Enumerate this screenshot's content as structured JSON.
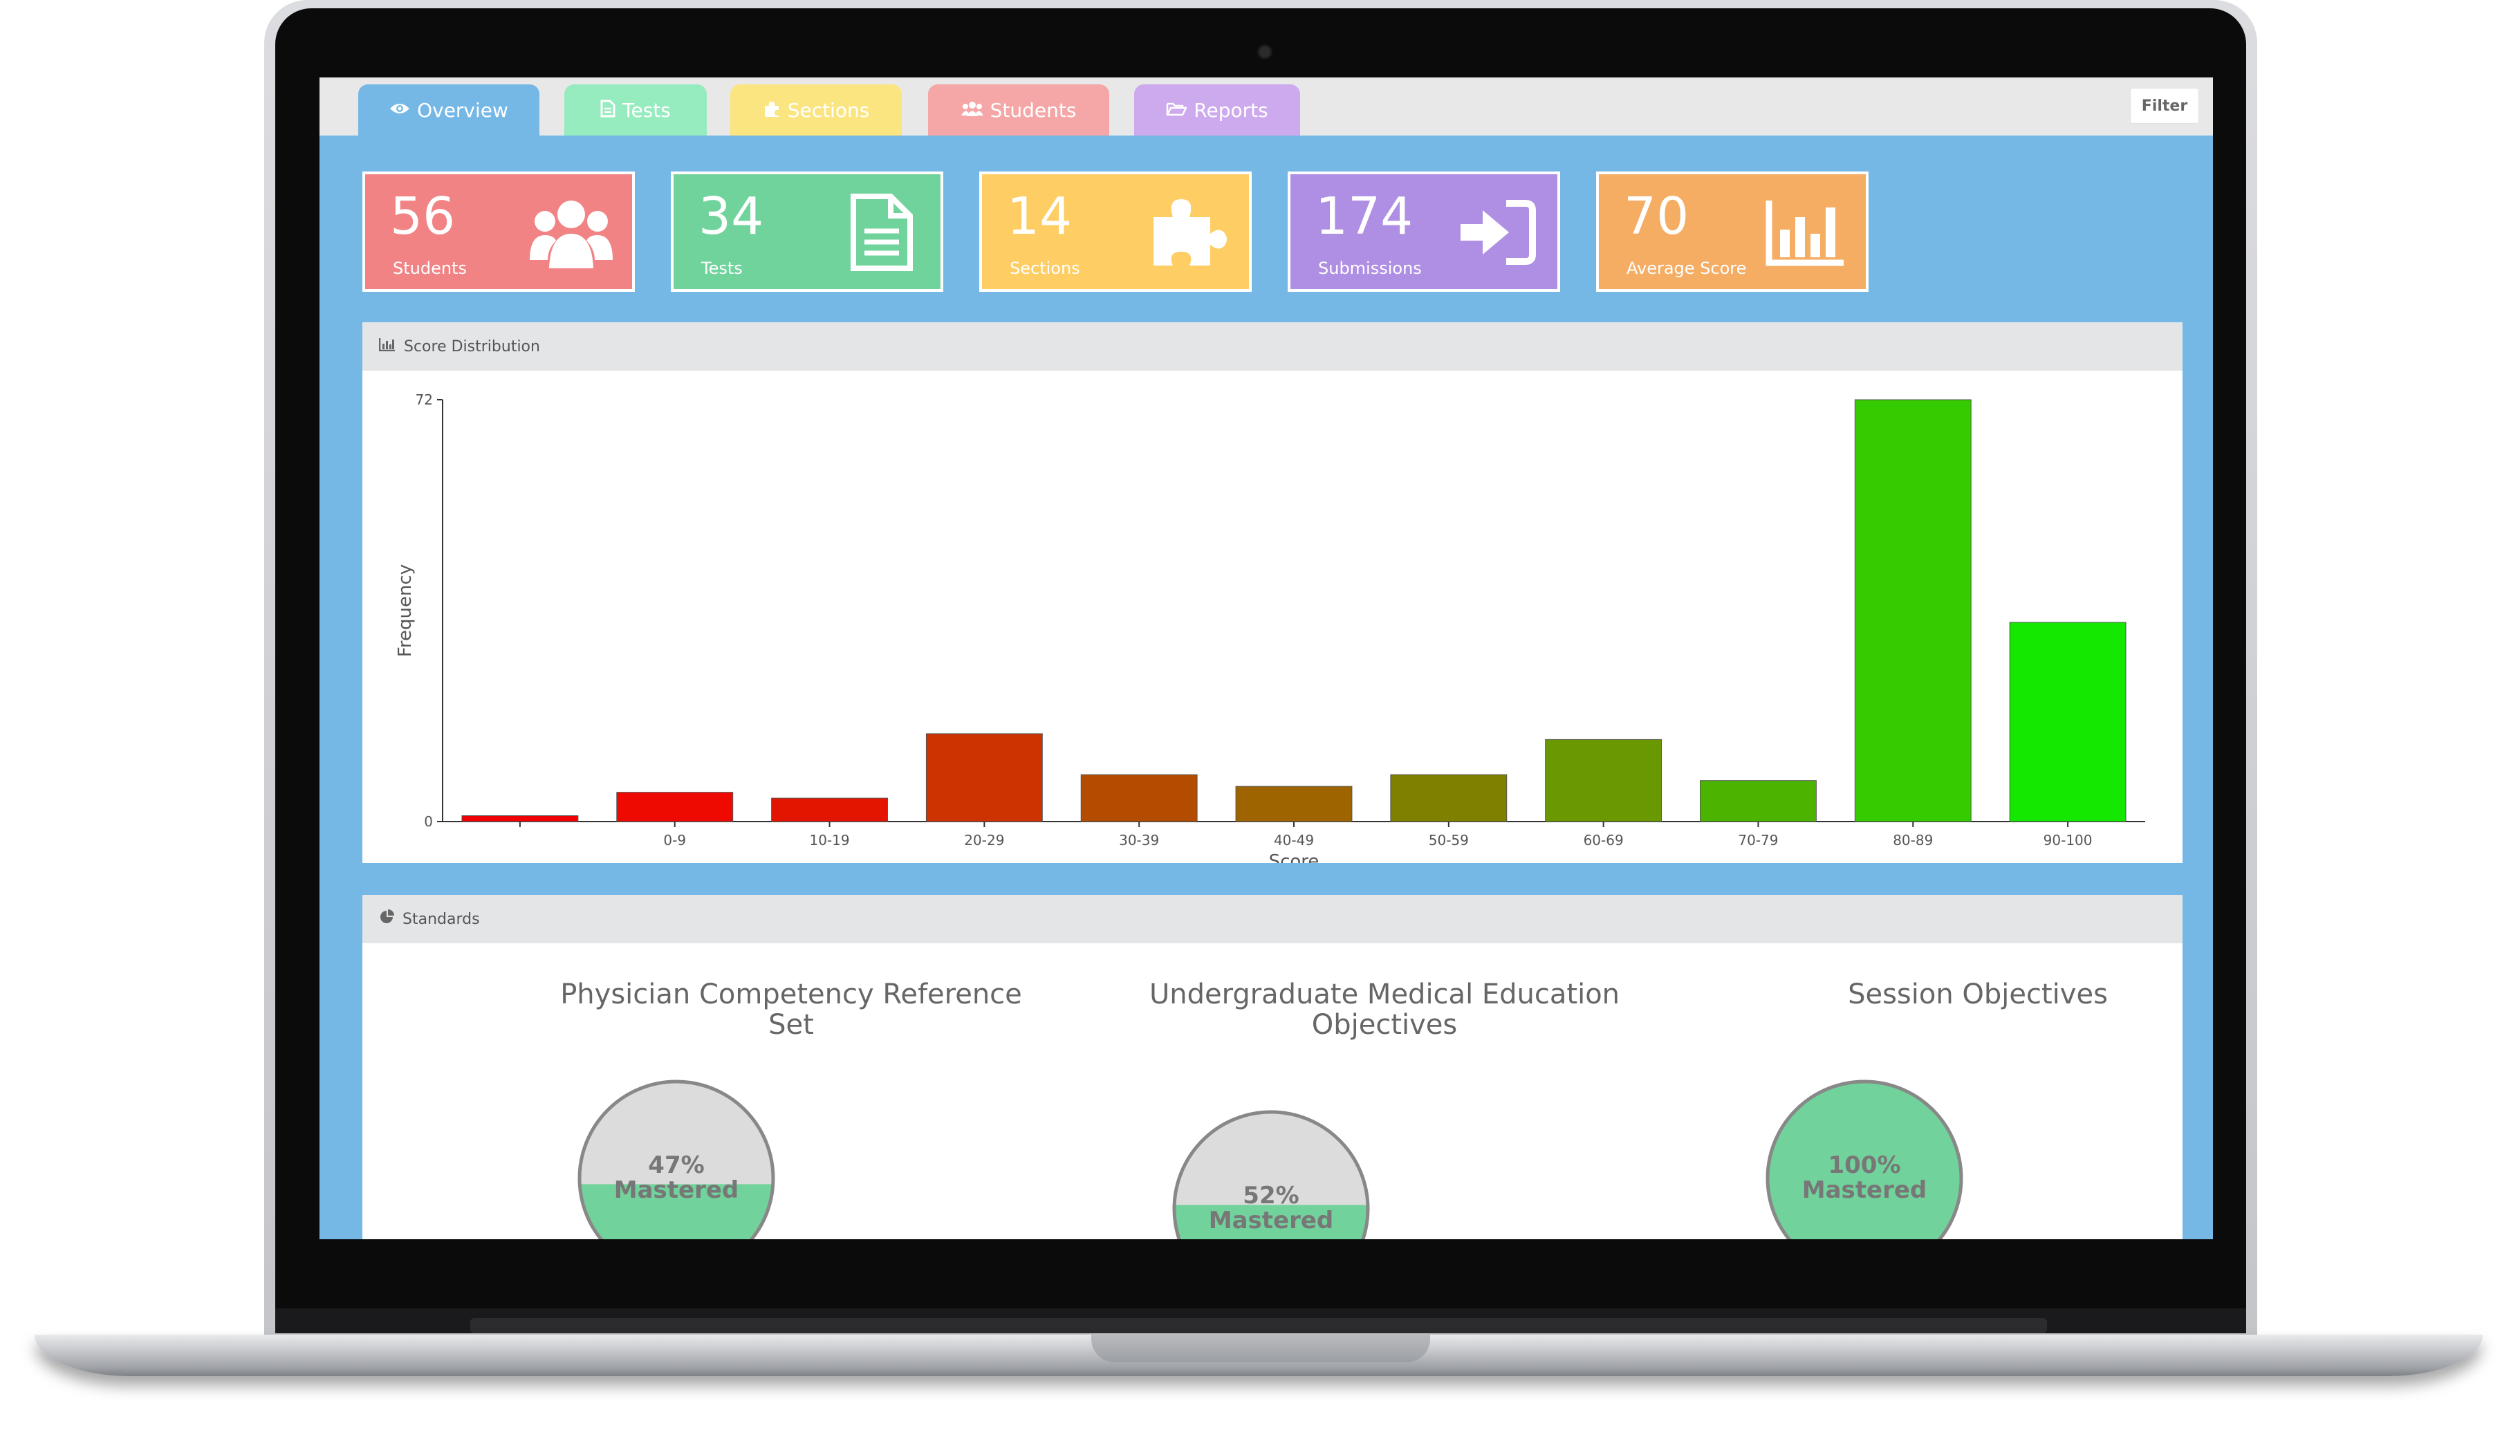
{
  "tabs": [
    {
      "label": "Overview",
      "icon": "eye-icon",
      "color": "#75b8e6",
      "active": true
    },
    {
      "label": "Tests",
      "icon": "document-icon",
      "color": "#96ecbf"
    },
    {
      "label": "Sections",
      "icon": "puzzle-icon",
      "color": "#fbe580"
    },
    {
      "label": "Students",
      "icon": "users-icon",
      "color": "#f5a6a6"
    },
    {
      "label": "Reports",
      "icon": "folder-open-icon",
      "color": "#cda9ee"
    }
  ],
  "filter_label": "Filter",
  "stats": [
    {
      "value": "56",
      "label": "Students",
      "icon": "users-icon",
      "color": "#f28385"
    },
    {
      "value": "34",
      "label": "Tests",
      "icon": "document-icon",
      "color": "#71d39c"
    },
    {
      "value": "14",
      "label": "Sections",
      "icon": "puzzle-icon",
      "color": "#fecd63"
    },
    {
      "value": "174",
      "label": "Submissions",
      "icon": "sign-in-icon",
      "color": "#af8fe3"
    },
    {
      "value": "70",
      "label": "Average Score",
      "icon": "bar-chart-icon",
      "color": "#f4ad63"
    }
  ],
  "score_panel": {
    "title": "Score Distribution",
    "icon": "bar-chart-icon"
  },
  "chart_data": {
    "type": "bar",
    "categories": [
      "",
      "0-9",
      "10-19",
      "20-29",
      "30-39",
      "40-49",
      "50-59",
      "60-69",
      "70-79",
      "80-89",
      "90-100"
    ],
    "values": [
      1,
      5,
      4,
      15,
      8,
      6,
      8,
      14,
      7,
      72,
      34
    ],
    "colors": [
      "#f00000",
      "#ee0a00",
      "#e31400",
      "#cc3300",
      "#b44c00",
      "#9e6400",
      "#7f7f00",
      "#6a9800",
      "#4cb400",
      "#34cc00",
      "#14e800"
    ],
    "xlabel": "Score",
    "ylabel": "Frequency",
    "yticks": [
      "0",
      "72"
    ],
    "ylim": [
      0,
      72
    ],
    "grid": false
  },
  "standards_panel": {
    "title": "Standards",
    "icon": "pie-chart-icon"
  },
  "standards": [
    {
      "title": "Physician Competency Reference Set",
      "percent": 47,
      "label": "47% Mastered",
      "pct_text": "47%",
      "mastered_text": "Mastered"
    },
    {
      "title": "Undergraduate Medical Education Objectives",
      "percent": 52,
      "label": "52% Mastered",
      "pct_text": "52%",
      "mastered_text": "Mastered"
    },
    {
      "title": "Session Objectives",
      "percent": 100,
      "label": "100% Mastered",
      "pct_text": "100%",
      "mastered_text": "Mastered"
    }
  ],
  "colors": {
    "screen_bg": "#75b8e6",
    "mastered_fill": "#72d29b",
    "unmastered_fill": "#dcdcdc"
  }
}
